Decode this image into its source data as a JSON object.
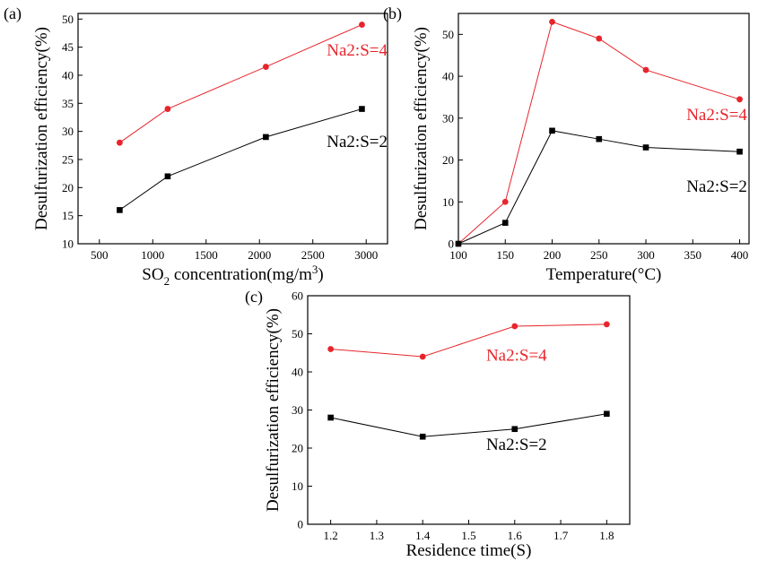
{
  "colors": {
    "red_series": "#e8242b",
    "black_series": "#000000",
    "axis": "#000000"
  },
  "chart_data": [
    {
      "type": "line",
      "panel_label": "(a)",
      "xlabel": {
        "pre": "SO",
        "sub": "2",
        "mid": " concentration(mg/m",
        "sup": "3",
        "post": ")"
      },
      "ylabel": "Desulfurization efficiency(%)",
      "xlim": [
        300,
        3200
      ],
      "ylim": [
        10,
        51
      ],
      "xticks": [
        "500",
        "1000",
        "1500",
        "2000",
        "2500",
        "3000"
      ],
      "yticks": [
        "10",
        "15",
        "20",
        "25",
        "30",
        "35",
        "40",
        "45",
        "50"
      ],
      "x": [
        690,
        1140,
        2060,
        2960
      ],
      "series": [
        {
          "name": "Na2:S=4",
          "color": "#e8242b",
          "marker": "circle",
          "values": [
            28,
            34,
            41.5,
            49
          ],
          "label_at": [
            3200,
            43.5
          ]
        },
        {
          "name": "Na2:S=2",
          "color": "#000000",
          "marker": "square",
          "values": [
            16,
            22,
            29,
            34
          ],
          "label_at": [
            3200,
            27.2
          ]
        }
      ],
      "grid": false
    },
    {
      "type": "line",
      "panel_label": "(b)",
      "xlabel": "Temperature(°C)",
      "ylabel": "Desulfurization efficiency(%)",
      "xlim": [
        100,
        410
      ],
      "ylim": [
        0,
        55
      ],
      "xticks": [
        "100",
        "150",
        "200",
        "250",
        "300",
        "350",
        "400"
      ],
      "yticks": [
        "0",
        "10",
        "20",
        "30",
        "40",
        "50"
      ],
      "x": [
        100,
        150,
        200,
        250,
        300,
        400
      ],
      "series": [
        {
          "name": "Na2:S=4",
          "color": "#e8242b",
          "marker": "circle",
          "values": [
            0,
            10,
            53,
            49,
            41.5,
            34.5
          ],
          "label_at": [
            408,
            29.5
          ]
        },
        {
          "name": "Na2:S=2",
          "color": "#000000",
          "marker": "square",
          "values": [
            0,
            5,
            27,
            25,
            23,
            22
          ],
          "label_at": [
            408,
            12.4
          ]
        }
      ],
      "grid": false
    },
    {
      "type": "line",
      "panel_label": "(c)",
      "xlabel": "Residence time(S)",
      "ylabel": "Desulfurization efficiency(%)",
      "xlim": [
        1.15,
        1.85
      ],
      "ylim": [
        0,
        60
      ],
      "xticks": [
        "1.2",
        "1.3",
        "1.4",
        "1.5",
        "1.6",
        "1.7",
        "1.8"
      ],
      "yticks": [
        "0",
        "10",
        "20",
        "30",
        "40",
        "50",
        "60"
      ],
      "x": [
        1.2,
        1.4,
        1.6,
        1.8
      ],
      "series": [
        {
          "name": "Na2:S=4",
          "color": "#e8242b",
          "marker": "circle",
          "values": [
            46,
            44,
            52,
            52.5
          ],
          "label_at": [
            1.67,
            43
          ]
        },
        {
          "name": "Na2:S=2",
          "color": "#000000",
          "marker": "square",
          "values": [
            28,
            23,
            25,
            29
          ],
          "label_at": [
            1.67,
            19.5
          ]
        }
      ],
      "grid": false
    }
  ]
}
